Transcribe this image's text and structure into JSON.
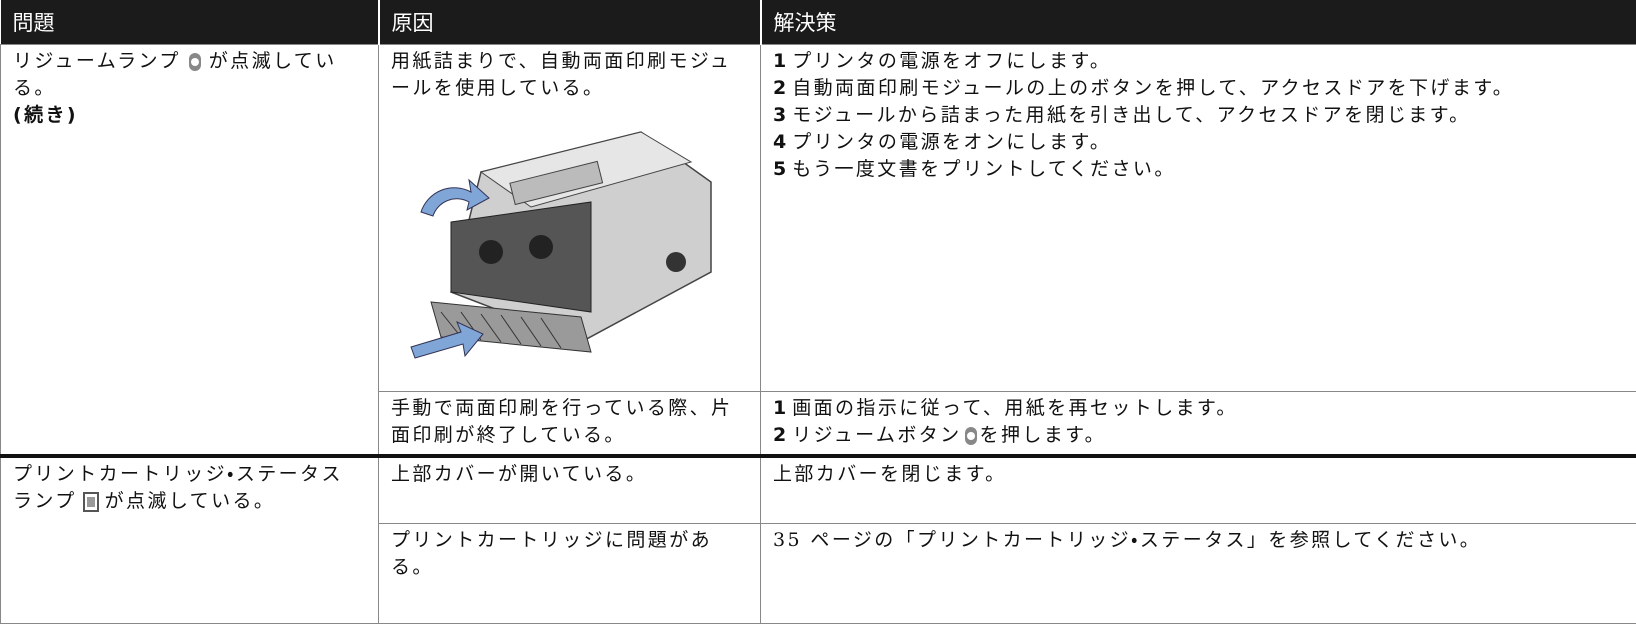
{
  "header": {
    "columns": [
      "問題",
      "原因",
      "解決策"
    ]
  },
  "groups": [
    {
      "problem": {
        "before": "リジュームランプ",
        "after": "が点滅している。",
        "note": "(続き)"
      },
      "rows": [
        {
          "cause": "用紙詰まりで、自動両面印刷モジュールを使用している。",
          "solution": [
            {
              "number": "1",
              "text": "プリンタの電源をオフにします。"
            },
            {
              "number": "2",
              "text": "自動両面印刷モジュールの上のボタンを押して、アクセスドアを下げます。"
            },
            {
              "number": "3",
              "text": "モジュールから詰まった用紙を引き出して、アクセスドアを閉じます。"
            },
            {
              "number": "4",
              "text": "プリンタの電源をオンにします。"
            },
            {
              "number": "5",
              "text": "もう一度文書をプリントしてください。"
            }
          ]
        },
        {
          "cause": "手動で両面印刷を行っている際、片面印刷が終了している。",
          "solution": [
            {
              "number": "1",
              "text": "画面の指示に従って、用紙を再セットします。"
            },
            {
              "number": "2",
              "before": "リジュームボタン",
              "after": "を押します。"
            }
          ]
        }
      ]
    },
    {
      "problem": {
        "before": "プリントカートリッジ・ステータスランプ",
        "after": "が点滅している。"
      },
      "rows": [
        {
          "cause": "上部カバーが開いている。",
          "solution_text": "上部カバーを閉じます。"
        },
        {
          "cause": "プリントカートリッジに問題がある。",
          "solution_text": "35 ページの「プリントカートリッジ・ステータス」を参照してください。"
        }
      ]
    }
  ]
}
